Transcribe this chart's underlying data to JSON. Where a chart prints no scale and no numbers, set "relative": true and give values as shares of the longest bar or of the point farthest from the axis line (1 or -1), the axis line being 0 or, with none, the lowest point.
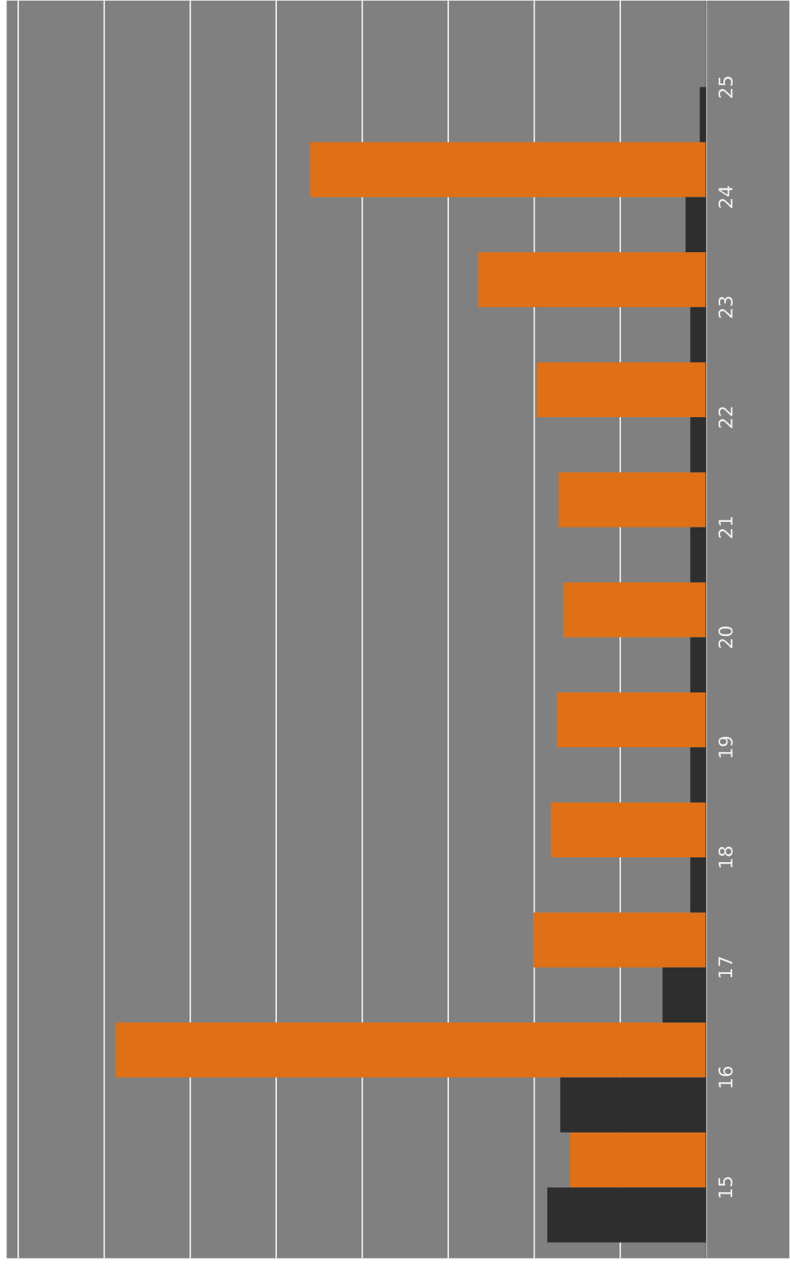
{
  "chart_data": {
    "type": "bar",
    "orientation": "horizontal",
    "relative": true,
    "grid": "x",
    "categories": [
      "25",
      "24",
      "23",
      "22",
      "21",
      "20",
      "19",
      "18",
      "17",
      "16",
      "15"
    ],
    "series": [
      {
        "color": "#df7016",
        "values": [
          0,
          0.67,
          0.386,
          0.287,
          0.25,
          0.242,
          0.253,
          0.263,
          0.293,
          1,
          0.231
        ]
      },
      {
        "color": "#2e2e2e",
        "values": [
          0.011,
          0.035,
          0.027,
          0.027,
          0.027,
          0.027,
          0.027,
          0.027,
          0.074,
          0.247,
          0.269
        ]
      }
    ]
  }
}
